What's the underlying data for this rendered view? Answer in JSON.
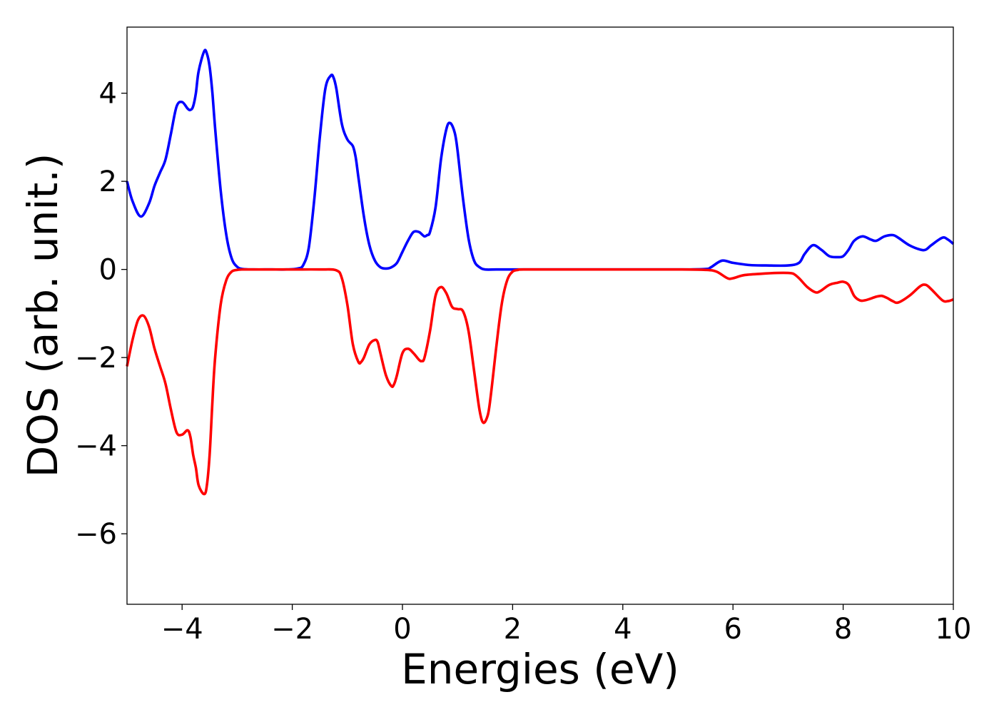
{
  "chart_data": {
    "type": "line",
    "xlabel": "Energies (eV)",
    "ylabel": "DOS (arb. unit.)",
    "xlim": [
      -5,
      10
    ],
    "ylim": [
      -7.6,
      5.5
    ],
    "xticks": [
      -4,
      -2,
      0,
      2,
      4,
      6,
      8,
      10
    ],
    "xtick_labels": [
      "−4",
      "−2",
      "0",
      "2",
      "4",
      "6",
      "8",
      "10"
    ],
    "yticks": [
      4,
      2,
      0,
      -2,
      -4,
      -6
    ],
    "ytick_labels": [
      "4",
      "2",
      "0",
      "−2",
      "−4",
      "−6"
    ],
    "grid": false,
    "series": [
      {
        "color": "#0000ff",
        "x": [
          -5.0,
          -4.9,
          -4.75,
          -4.6,
          -4.5,
          -4.4,
          -4.3,
          -4.2,
          -4.1,
          -4.0,
          -3.9,
          -3.85,
          -3.8,
          -3.75,
          -3.7,
          -3.6,
          -3.55,
          -3.5,
          -3.45,
          -3.4,
          -3.3,
          -3.2,
          -3.1,
          -3.0,
          -2.9,
          -2.7,
          -2.4,
          -2.1,
          -1.9,
          -1.8,
          -1.7,
          -1.6,
          -1.5,
          -1.4,
          -1.3,
          -1.25,
          -1.2,
          -1.1,
          -1.0,
          -0.9,
          -0.85,
          -0.8,
          -0.7,
          -0.6,
          -0.5,
          -0.4,
          -0.3,
          -0.2,
          -0.1,
          0.0,
          0.1,
          0.2,
          0.3,
          0.35,
          0.4,
          0.45,
          0.5,
          0.6,
          0.7,
          0.8,
          0.87,
          0.95,
          1.0,
          1.1,
          1.2,
          1.3,
          1.4,
          1.5,
          1.7,
          2.0,
          3.0,
          4.0,
          5.0,
          5.5,
          5.6,
          5.8,
          6.0,
          6.3,
          6.6,
          7.0,
          7.2,
          7.3,
          7.45,
          7.6,
          7.75,
          7.9,
          8.0,
          8.1,
          8.2,
          8.35,
          8.5,
          8.6,
          8.75,
          8.9,
          9.0,
          9.2,
          9.4,
          9.5,
          9.6,
          9.8,
          9.9,
          10.0
        ],
        "y": [
          2.0,
          1.55,
          1.2,
          1.5,
          1.9,
          2.2,
          2.5,
          3.1,
          3.7,
          3.8,
          3.65,
          3.62,
          3.7,
          4.0,
          4.5,
          4.95,
          4.9,
          4.6,
          4.0,
          3.2,
          1.8,
          0.8,
          0.25,
          0.06,
          0.01,
          0.0,
          0.0,
          0.0,
          0.02,
          0.1,
          0.5,
          1.6,
          3.0,
          4.1,
          4.4,
          4.35,
          4.1,
          3.3,
          2.95,
          2.8,
          2.55,
          2.1,
          1.2,
          0.55,
          0.2,
          0.05,
          0.02,
          0.05,
          0.15,
          0.4,
          0.65,
          0.85,
          0.85,
          0.8,
          0.75,
          0.78,
          0.85,
          1.4,
          2.5,
          3.2,
          3.32,
          3.1,
          2.7,
          1.6,
          0.7,
          0.2,
          0.05,
          0.0,
          0.0,
          0.0,
          0.0,
          0.0,
          0.0,
          0.01,
          0.05,
          0.2,
          0.15,
          0.1,
          0.09,
          0.09,
          0.15,
          0.35,
          0.55,
          0.45,
          0.3,
          0.28,
          0.3,
          0.45,
          0.65,
          0.75,
          0.68,
          0.65,
          0.75,
          0.78,
          0.72,
          0.55,
          0.45,
          0.45,
          0.55,
          0.72,
          0.68,
          0.58
        ]
      },
      {
        "color": "#ff0000",
        "x": [
          -5.0,
          -4.9,
          -4.8,
          -4.7,
          -4.6,
          -4.5,
          -4.4,
          -4.3,
          -4.2,
          -4.1,
          -4.0,
          -3.9,
          -3.85,
          -3.8,
          -3.75,
          -3.7,
          -3.6,
          -3.55,
          -3.5,
          -3.45,
          -3.4,
          -3.3,
          -3.2,
          -3.1,
          -3.0,
          -2.9,
          -2.8,
          -2.5,
          -2.0,
          -1.5,
          -1.2,
          -1.1,
          -1.0,
          -0.9,
          -0.8,
          -0.75,
          -0.7,
          -0.6,
          -0.5,
          -0.45,
          -0.4,
          -0.3,
          -0.2,
          -0.15,
          -0.1,
          0.0,
          0.1,
          0.2,
          0.3,
          0.35,
          0.4,
          0.5,
          0.6,
          0.7,
          0.8,
          0.9,
          1.0,
          1.1,
          1.2,
          1.3,
          1.4,
          1.47,
          1.55,
          1.6,
          1.7,
          1.8,
          1.9,
          2.0,
          2.1,
          2.2,
          3.0,
          4.0,
          5.0,
          5.5,
          5.7,
          5.9,
          6.0,
          6.2,
          6.5,
          6.8,
          7.0,
          7.1,
          7.2,
          7.35,
          7.5,
          7.6,
          7.75,
          7.9,
          8.0,
          8.1,
          8.2,
          8.3,
          8.4,
          8.6,
          8.7,
          8.8,
          8.9,
          9.0,
          9.2,
          9.4,
          9.5,
          9.6,
          9.8,
          9.9,
          10.0
        ],
        "y": [
          -2.2,
          -1.6,
          -1.15,
          -1.05,
          -1.3,
          -1.8,
          -2.2,
          -2.6,
          -3.2,
          -3.7,
          -3.75,
          -3.65,
          -3.8,
          -4.2,
          -4.5,
          -4.9,
          -5.1,
          -4.9,
          -4.2,
          -3.0,
          -2.0,
          -0.8,
          -0.25,
          -0.05,
          -0.01,
          0.0,
          0.0,
          0.0,
          0.0,
          0.0,
          -0.02,
          -0.2,
          -0.8,
          -1.7,
          -2.1,
          -2.1,
          -2.0,
          -1.7,
          -1.6,
          -1.65,
          -1.9,
          -2.4,
          -2.65,
          -2.6,
          -2.4,
          -1.9,
          -1.8,
          -1.9,
          -2.05,
          -2.08,
          -2.0,
          -1.4,
          -0.6,
          -0.4,
          -0.55,
          -0.85,
          -0.9,
          -0.95,
          -1.4,
          -2.3,
          -3.2,
          -3.48,
          -3.3,
          -2.9,
          -1.8,
          -0.8,
          -0.25,
          -0.05,
          -0.01,
          0.0,
          0.0,
          0.0,
          0.0,
          -0.01,
          -0.05,
          -0.2,
          -0.2,
          -0.13,
          -0.1,
          -0.08,
          -0.08,
          -0.1,
          -0.2,
          -0.4,
          -0.52,
          -0.48,
          -0.35,
          -0.3,
          -0.28,
          -0.35,
          -0.6,
          -0.7,
          -0.7,
          -0.62,
          -0.6,
          -0.65,
          -0.72,
          -0.75,
          -0.6,
          -0.38,
          -0.35,
          -0.45,
          -0.7,
          -0.72,
          -0.68
        ]
      }
    ]
  }
}
